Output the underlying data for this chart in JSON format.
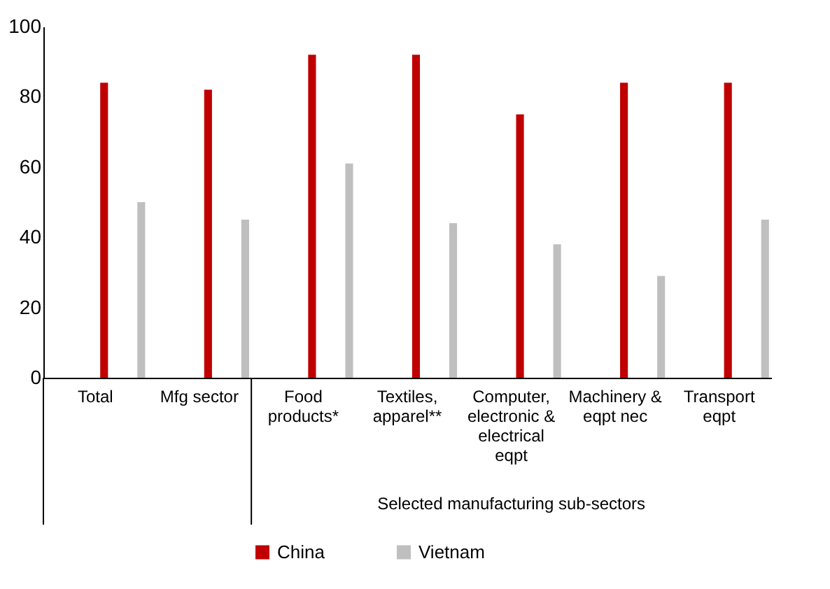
{
  "chart_data": {
    "type": "bar",
    "categories": [
      "Total",
      "Mfg sector",
      "Food products*",
      "Textiles, apparel**",
      "Computer, electronic & electrical eqpt",
      "Machinery & eqpt nec",
      "Transport eqpt"
    ],
    "series": [
      {
        "name": "China",
        "color": "#c00000",
        "values": [
          84,
          82,
          92,
          92,
          75,
          84,
          84
        ]
      },
      {
        "name": "Vietnam",
        "color": "#bfbfbf",
        "values": [
          50,
          45,
          61,
          44,
          38,
          29,
          45
        ]
      }
    ],
    "ylim": [
      0,
      100
    ],
    "yticks": [
      0,
      20,
      40,
      60,
      80,
      100
    ],
    "grid": false,
    "legend": "bottom",
    "annotations": [
      {
        "text": "Selected manufacturing sub-sectors"
      }
    ]
  }
}
